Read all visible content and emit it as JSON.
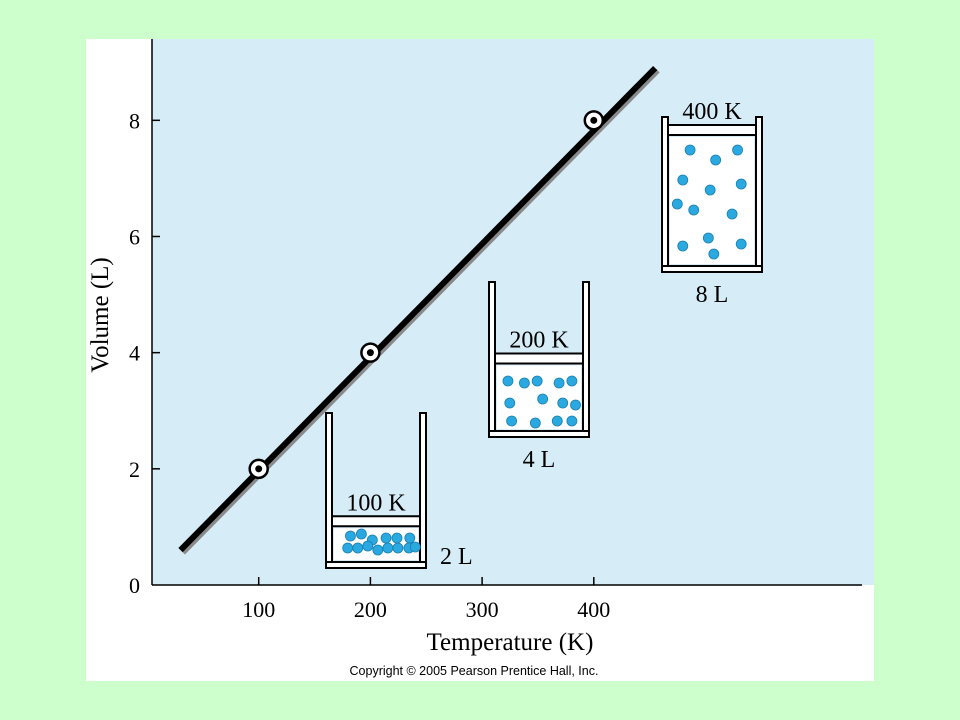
{
  "colors": {
    "page_background": "#ccffcc",
    "plot_background": "#d6ecf7",
    "line": "#000000",
    "molecule": "#29a9e0"
  },
  "chart_data": {
    "type": "line",
    "xlabel": "Temperature (K)",
    "ylabel": "Volume (L)",
    "xlim": [
      -100,
      600
    ],
    "ylim": [
      0,
      9.4
    ],
    "x_ticks": [
      100,
      200,
      300,
      400
    ],
    "y_ticks": [
      0,
      2,
      4,
      6,
      8
    ],
    "grid": false,
    "line_segment": {
      "x": [
        30,
        455
      ],
      "y": [
        0.6,
        8.9
      ]
    },
    "series": [
      {
        "x": [
          100,
          200,
          400
        ],
        "y": [
          2,
          4,
          8
        ]
      }
    ],
    "annotations": [
      {
        "temperature_label": "100 K",
        "volume_label": "2 L",
        "fill_fraction": 0.25,
        "molecules": 14
      },
      {
        "temperature_label": "200 K",
        "volume_label": "4 L",
        "fill_fraction": 0.5,
        "molecules": 13
      },
      {
        "temperature_label": "400 K",
        "volume_label": "8 L",
        "fill_fraction": 1.0,
        "molecules": 13
      }
    ]
  },
  "footer": {
    "copyright": "Copyright © 2005 Pearson Prentice Hall, Inc."
  }
}
